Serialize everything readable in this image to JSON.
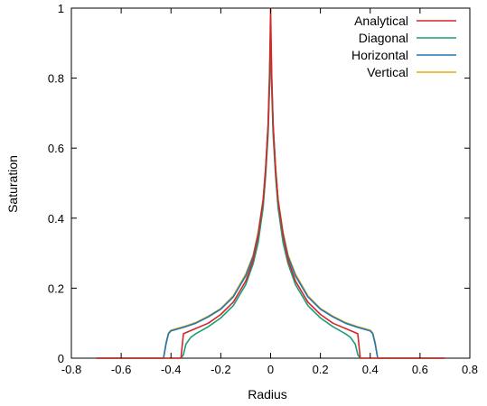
{
  "chart_data": {
    "type": "line",
    "title": "",
    "xlabel": "Radius",
    "ylabel": "Saturation",
    "xlim": [
      -0.8,
      0.8
    ],
    "ylim": [
      0,
      1
    ],
    "xticks": [
      "-0.8",
      "-0.6",
      "-0.4",
      "-0.2",
      "0",
      "0.2",
      "0.4",
      "0.6",
      "0.8"
    ],
    "yticks": [
      "0",
      "0.2",
      "0.4",
      "0.6",
      "0.8",
      "1"
    ],
    "grid": false,
    "legend_position": "top-right",
    "series": [
      {
        "name": "Analytical",
        "color": "#d62728",
        "x": [
          -0.7,
          -0.36,
          -0.355,
          -0.35,
          -0.3,
          -0.25,
          -0.2,
          -0.15,
          -0.1,
          -0.07,
          -0.05,
          -0.03,
          -0.02,
          -0.01,
          -0.004,
          0,
          0.004,
          0.01,
          0.02,
          0.03,
          0.05,
          0.07,
          0.1,
          0.15,
          0.2,
          0.25,
          0.3,
          0.35,
          0.355,
          0.36,
          0.7
        ],
        "y": [
          0,
          0,
          0.035,
          0.07,
          0.085,
          0.1,
          0.125,
          0.16,
          0.22,
          0.28,
          0.35,
          0.45,
          0.54,
          0.67,
          0.82,
          1.0,
          0.82,
          0.67,
          0.54,
          0.45,
          0.35,
          0.28,
          0.22,
          0.16,
          0.125,
          0.1,
          0.085,
          0.07,
          0.035,
          0,
          0
        ]
      },
      {
        "name": "Diagonal",
        "color": "#1a9e77",
        "x": [
          -0.7,
          -0.36,
          -0.35,
          -0.34,
          -0.32,
          -0.3,
          -0.25,
          -0.2,
          -0.15,
          -0.1,
          -0.07,
          -0.05,
          -0.03,
          -0.02,
          -0.01,
          -0.004,
          0,
          0.004,
          0.01,
          0.02,
          0.03,
          0.05,
          0.07,
          0.1,
          0.15,
          0.2,
          0.25,
          0.3,
          0.32,
          0.34,
          0.35,
          0.36,
          0.7
        ],
        "y": [
          0,
          0,
          0.01,
          0.04,
          0.06,
          0.07,
          0.09,
          0.115,
          0.15,
          0.21,
          0.27,
          0.33,
          0.43,
          0.52,
          0.64,
          0.78,
          0.93,
          0.78,
          0.64,
          0.52,
          0.43,
          0.33,
          0.27,
          0.21,
          0.15,
          0.115,
          0.09,
          0.07,
          0.06,
          0.04,
          0.01,
          0,
          0
        ]
      },
      {
        "name": "Horizontal",
        "color": "#1f77b4",
        "x": [
          -0.7,
          -0.43,
          -0.42,
          -0.41,
          -0.4,
          -0.35,
          -0.3,
          -0.25,
          -0.2,
          -0.15,
          -0.1,
          -0.07,
          -0.05,
          -0.03,
          -0.02,
          -0.01,
          -0.004,
          0,
          0.004,
          0.01,
          0.02,
          0.03,
          0.05,
          0.07,
          0.1,
          0.15,
          0.2,
          0.25,
          0.3,
          0.35,
          0.4,
          0.41,
          0.42,
          0.43,
          0.7
        ],
        "y": [
          0,
          0,
          0.04,
          0.07,
          0.078,
          0.088,
          0.1,
          0.118,
          0.14,
          0.175,
          0.235,
          0.29,
          0.355,
          0.45,
          0.54,
          0.66,
          0.8,
          0.94,
          0.8,
          0.66,
          0.54,
          0.45,
          0.355,
          0.29,
          0.235,
          0.175,
          0.14,
          0.118,
          0.1,
          0.088,
          0.078,
          0.07,
          0.04,
          0,
          0
        ]
      },
      {
        "name": "Vertical",
        "color": "#e6a817",
        "x": [
          -0.7,
          -0.43,
          -0.42,
          -0.41,
          -0.4,
          -0.35,
          -0.3,
          -0.25,
          -0.2,
          -0.15,
          -0.1,
          -0.07,
          -0.05,
          -0.03,
          -0.02,
          -0.01,
          -0.004,
          0,
          0.004,
          0.01,
          0.02,
          0.03,
          0.05,
          0.07,
          0.1,
          0.15,
          0.2,
          0.25,
          0.3,
          0.35,
          0.4,
          0.41,
          0.42,
          0.43,
          0.7
        ],
        "y": [
          0,
          0,
          0.045,
          0.072,
          0.08,
          0.09,
          0.102,
          0.12,
          0.142,
          0.178,
          0.24,
          0.295,
          0.36,
          0.455,
          0.545,
          0.665,
          0.81,
          0.95,
          0.81,
          0.665,
          0.545,
          0.455,
          0.36,
          0.295,
          0.24,
          0.178,
          0.142,
          0.12,
          0.102,
          0.09,
          0.08,
          0.072,
          0.045,
          0,
          0
        ]
      }
    ]
  }
}
